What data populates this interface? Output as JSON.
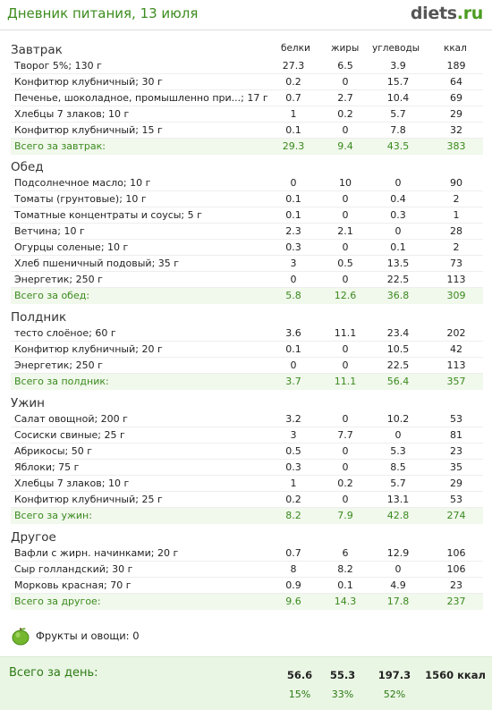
{
  "header": {
    "title": "Дневник питания, 13 июля",
    "logo_main": "diets",
    "logo_tld": ".ru"
  },
  "columns": {
    "protein": "белки",
    "fat": "жиры",
    "carbs": "углеводы",
    "kcal": "ккал"
  },
  "meals": [
    {
      "title": "Завтрак",
      "items": [
        {
          "name": "Творог 5%; 130 г",
          "p": "27.3",
          "f": "6.5",
          "c": "3.9",
          "k": "189"
        },
        {
          "name": "Конфитюр клубничный; 30 г",
          "p": "0.2",
          "f": "0",
          "c": "15.7",
          "k": "64"
        },
        {
          "name": "Печенье, шоколадное, промышленно при...; 17 г",
          "p": "0.7",
          "f": "2.7",
          "c": "10.4",
          "k": "69"
        },
        {
          "name": "Хлебцы 7 злаков; 10 г",
          "p": "1",
          "f": "0.2",
          "c": "5.7",
          "k": "29"
        },
        {
          "name": "Конфитюр клубничный; 15 г",
          "p": "0.1",
          "f": "0",
          "c": "7.8",
          "k": "32"
        }
      ],
      "total": {
        "name": "Всего за завтрак:",
        "p": "29.3",
        "f": "9.4",
        "c": "43.5",
        "k": "383"
      }
    },
    {
      "title": "Обед",
      "items": [
        {
          "name": "Подсолнечное масло; 10 г",
          "p": "0",
          "f": "10",
          "c": "0",
          "k": "90"
        },
        {
          "name": "Томаты (грунтовые); 10 г",
          "p": "0.1",
          "f": "0",
          "c": "0.4",
          "k": "2"
        },
        {
          "name": "Томатные концентраты и соусы; 5 г",
          "p": "0.1",
          "f": "0",
          "c": "0.3",
          "k": "1"
        },
        {
          "name": "Ветчина; 10 г",
          "p": "2.3",
          "f": "2.1",
          "c": "0",
          "k": "28"
        },
        {
          "name": "Огурцы соленые; 10 г",
          "p": "0.3",
          "f": "0",
          "c": "0.1",
          "k": "2"
        },
        {
          "name": "Хлеб пшеничный подовый; 35 г",
          "p": "3",
          "f": "0.5",
          "c": "13.5",
          "k": "73"
        },
        {
          "name": "Энергетик; 250 г",
          "p": "0",
          "f": "0",
          "c": "22.5",
          "k": "113"
        }
      ],
      "total": {
        "name": "Всего за обед:",
        "p": "5.8",
        "f": "12.6",
        "c": "36.8",
        "k": "309"
      }
    },
    {
      "title": "Полдник",
      "items": [
        {
          "name": "тесто слоёное; 60 г",
          "p": "3.6",
          "f": "11.1",
          "c": "23.4",
          "k": "202"
        },
        {
          "name": "Конфитюр клубничный; 20 г",
          "p": "0.1",
          "f": "0",
          "c": "10.5",
          "k": "42"
        },
        {
          "name": "Энергетик; 250 г",
          "p": "0",
          "f": "0",
          "c": "22.5",
          "k": "113"
        }
      ],
      "total": {
        "name": "Всего за полдник:",
        "p": "3.7",
        "f": "11.1",
        "c": "56.4",
        "k": "357"
      }
    },
    {
      "title": "Ужин",
      "items": [
        {
          "name": "Салат овощной; 200 г",
          "p": "3.2",
          "f": "0",
          "c": "10.2",
          "k": "53"
        },
        {
          "name": "Сосиски свиные; 25 г",
          "p": "3",
          "f": "7.7",
          "c": "0",
          "k": "81"
        },
        {
          "name": "Абрикосы; 50 г",
          "p": "0.5",
          "f": "0",
          "c": "5.3",
          "k": "23"
        },
        {
          "name": "Яблоки; 75 г",
          "p": "0.3",
          "f": "0",
          "c": "8.5",
          "k": "35"
        },
        {
          "name": "Хлебцы 7 злаков; 10 г",
          "p": "1",
          "f": "0.2",
          "c": "5.7",
          "k": "29"
        },
        {
          "name": "Конфитюр клубничный; 25 г",
          "p": "0.2",
          "f": "0",
          "c": "13.1",
          "k": "53"
        }
      ],
      "total": {
        "name": "Всего за ужин:",
        "p": "8.2",
        "f": "7.9",
        "c": "42.8",
        "k": "274"
      }
    },
    {
      "title": "Другое",
      "items": [
        {
          "name": "Вафли с жирн. начинками; 20 г",
          "p": "0.7",
          "f": "6",
          "c": "12.9",
          "k": "106"
        },
        {
          "name": "Сыр голландский; 30 г",
          "p": "8",
          "f": "8.2",
          "c": "0",
          "k": "106"
        },
        {
          "name": "Морковь красная; 70 г",
          "p": "0.9",
          "f": "0.1",
          "c": "4.9",
          "k": "23"
        }
      ],
      "total": {
        "name": "Всего за другое:",
        "p": "9.6",
        "f": "14.3",
        "c": "17.8",
        "k": "237"
      }
    }
  ],
  "fruits": {
    "label": "Фрукты и овощи: 0",
    "icon": "green-apple-icon"
  },
  "day_total": {
    "label": "Всего за день:",
    "p": "56.6",
    "f": "55.3",
    "c": "197.3",
    "k": "1560 ккал",
    "p_pct": "15%",
    "f_pct": "33%",
    "c_pct": "52%"
  },
  "colors": {
    "accent_green": "#3d8c1f",
    "total_bg": "#f1f8ec",
    "day_bg": "#eaf6e4"
  }
}
